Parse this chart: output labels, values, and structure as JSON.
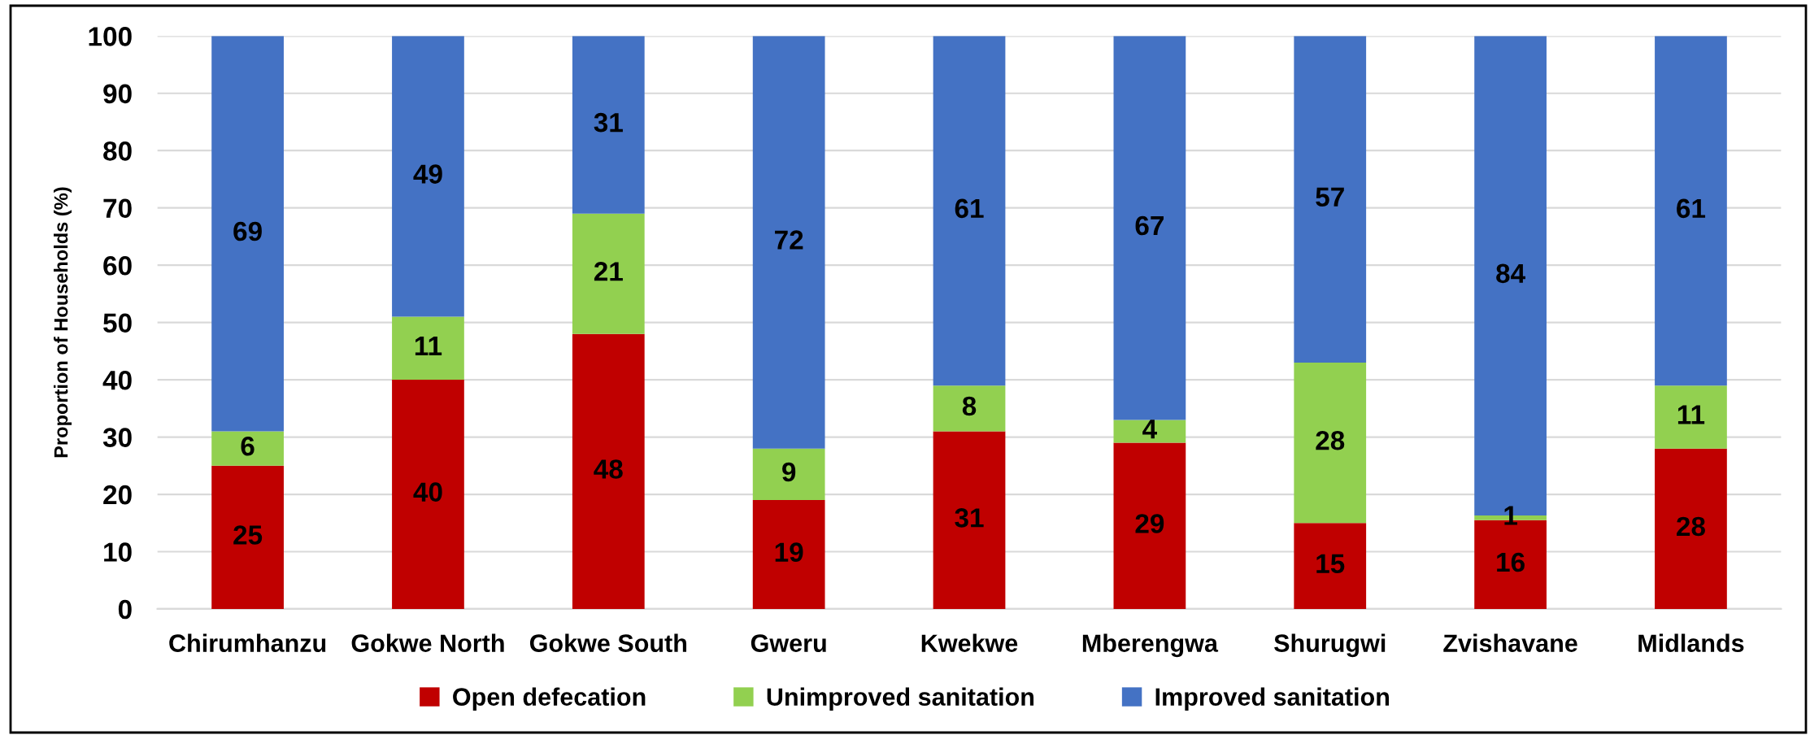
{
  "chart_data": {
    "type": "bar",
    "stacked": true,
    "ylabel": "Proportion of Households (%)",
    "categories": [
      "Chirumhanzu",
      "Gokwe North",
      "Gokwe South",
      "Gweru",
      "Kwekwe",
      "Mberengwa",
      "Shurugwi",
      "Zvishavane",
      "Midlands"
    ],
    "series": [
      {
        "name": "Open defecation",
        "color": "#c00000",
        "values": [
          25,
          40,
          48,
          19,
          31,
          29,
          15,
          15.5,
          28
        ],
        "value_labels": [
          "25",
          "40",
          "48",
          "19",
          "31",
          "29",
          "15",
          "16",
          "28"
        ]
      },
      {
        "name": "Unimproved sanitation",
        "color": "#92d050",
        "values": [
          6,
          11,
          21,
          9,
          8,
          4,
          28,
          0.8,
          11
        ],
        "value_labels": [
          "6",
          "11",
          "21",
          "9",
          "8",
          "4",
          "28",
          "1",
          "11"
        ]
      },
      {
        "name": "Improved sanitation",
        "color": "#4472c4",
        "values": [
          69,
          49,
          31,
          72,
          61,
          67,
          57,
          83.7,
          61
        ],
        "value_labels": [
          "69",
          "49",
          "31",
          "72",
          "61",
          "67",
          "57",
          "84",
          "61"
        ]
      }
    ],
    "ylim": [
      0,
      100
    ],
    "yticks": [
      0,
      10,
      20,
      30,
      40,
      50,
      60,
      70,
      80,
      90,
      100
    ],
    "grid": "y",
    "legend": "bottom"
  }
}
